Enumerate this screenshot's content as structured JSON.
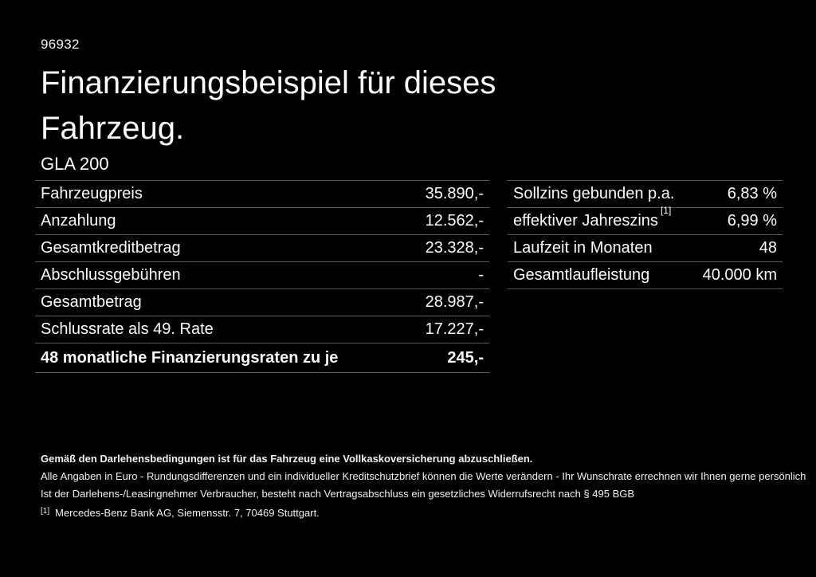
{
  "page": {
    "code": "96932",
    "title_line1": "Finanzierungsbeispiel für dieses",
    "title_line2": "Fahrzeug.",
    "model": "GLA 200"
  },
  "left_table": {
    "rows": [
      {
        "label": "Fahrzeugpreis",
        "value": "35.890,-"
      },
      {
        "label": "Anzahlung",
        "value": "12.562,-"
      },
      {
        "label": "Gesamtkreditbetrag",
        "value": "23.328,-"
      },
      {
        "label": "Abschlussgebühren",
        "value": "-"
      },
      {
        "label": "Gesamtbetrag",
        "value": "28.987,-"
      },
      {
        "label": "Schlussrate als 49. Rate",
        "value": "17.227,-"
      },
      {
        "label": "48 monatliche Finanzierungsraten zu je",
        "value": "245,-"
      }
    ]
  },
  "right_table": {
    "rows": [
      {
        "label": "Sollzins gebunden p.a.",
        "value": "6,83 %"
      },
      {
        "label": "effektiver Jahreszins",
        "label_sup": "[1]",
        "value": "6,99 %"
      },
      {
        "label": "Laufzeit in Monaten",
        "value": "48"
      },
      {
        "label": "Gesamtlaufleistung",
        "value": "40.000 km"
      }
    ]
  },
  "footer": {
    "line1": "Gemäß den Darlehensbedingungen ist für das Fahrzeug eine Vollkaskoversicherung abzuschließen.",
    "line2": "Alle Angaben in Euro - Rundungsdifferenzen und ein individueller Kreditschutzbrief können die Werte verändern - Ihr Wunschrate errechnen wir Ihnen gerne persönlich",
    "line3": "Ist der Darlehens-/Leasingnehmer Verbraucher, besteht nach Vertragsabschluss ein gesetzliches Widerrufsrecht nach § 495 BGB",
    "footnote_marker": "[1]",
    "footnote_text": "Mercedes-Benz Bank AG, Siemensstr. 7, 70469 Stuttgart."
  },
  "colors": {
    "background": "#000000",
    "text": "#ffffff",
    "divider": "#595959"
  }
}
